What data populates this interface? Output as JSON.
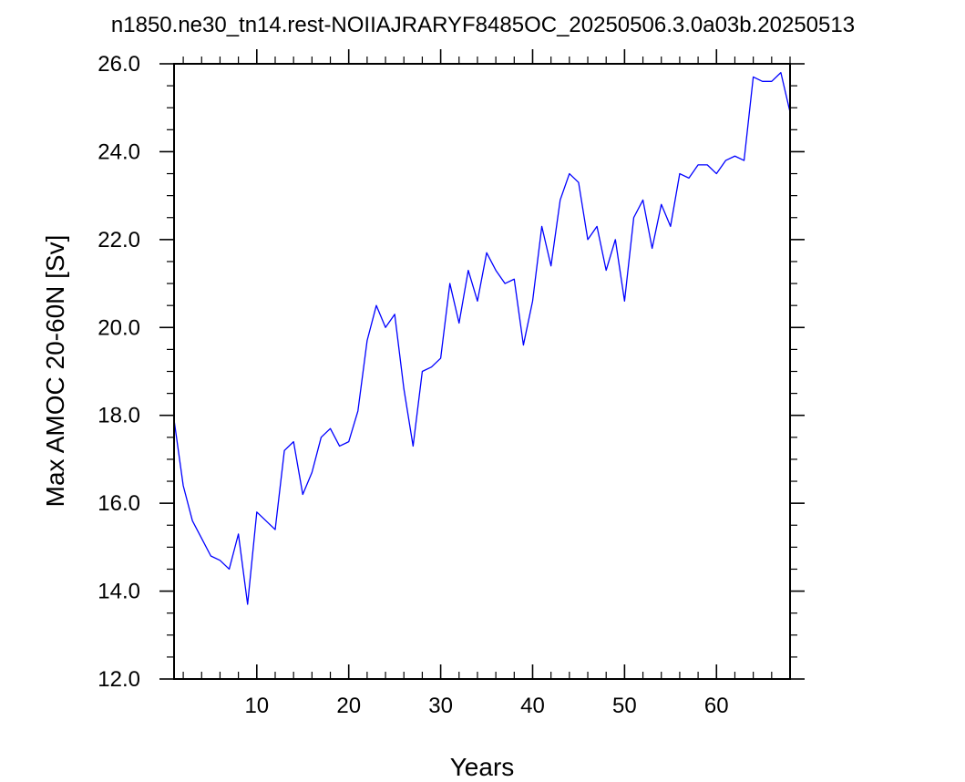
{
  "chart_data": {
    "type": "line",
    "title": "n1850.ne30_tn14.rest-NOIIAJRARYF8485OC_20250506.3.0a03b.20250513",
    "xlabel": "Years",
    "ylabel": "Max AMOC 20-60N [Sv]",
    "xlim": [
      1,
      68
    ],
    "ylim": [
      12.0,
      26.0
    ],
    "x_ticks": [
      10,
      20,
      30,
      40,
      50,
      60
    ],
    "x_tick_labels": [
      "10",
      "20",
      "30",
      "40",
      "50",
      "60"
    ],
    "y_ticks": [
      12,
      14,
      16,
      18,
      20,
      22,
      24,
      26
    ],
    "y_tick_labels": [
      "12.0",
      "14.0",
      "16.0",
      "18.0",
      "20.0",
      "22.0",
      "24.0",
      "26.0"
    ],
    "grid": false,
    "line_color": "#0000ff",
    "x": [
      1,
      2,
      3,
      4,
      5,
      6,
      7,
      8,
      9,
      10,
      11,
      12,
      13,
      14,
      15,
      16,
      17,
      18,
      19,
      20,
      21,
      22,
      23,
      24,
      25,
      26,
      27,
      28,
      29,
      30,
      31,
      32,
      33,
      34,
      35,
      36,
      37,
      38,
      39,
      40,
      41,
      42,
      43,
      44,
      45,
      46,
      47,
      48,
      49,
      50,
      51,
      52,
      53,
      54,
      55,
      56,
      57,
      58,
      59,
      60,
      61,
      62,
      63,
      64,
      65,
      66,
      67,
      68
    ],
    "y": [
      17.9,
      16.4,
      15.6,
      15.2,
      14.8,
      14.7,
      14.5,
      15.3,
      13.7,
      15.8,
      15.6,
      15.4,
      17.2,
      17.4,
      16.2,
      16.7,
      17.5,
      17.7,
      17.3,
      17.4,
      18.1,
      19.7,
      20.5,
      20.0,
      20.3,
      18.6,
      17.3,
      19.0,
      19.1,
      19.3,
      21.0,
      20.1,
      21.3,
      20.6,
      21.7,
      21.3,
      21.0,
      21.1,
      19.6,
      20.6,
      22.3,
      21.4,
      22.9,
      23.5,
      23.3,
      22.0,
      22.3,
      21.3,
      22.0,
      20.6,
      22.5,
      22.9,
      21.8,
      22.8,
      22.3,
      23.5,
      23.4,
      23.7,
      23.7,
      23.5,
      23.8,
      23.9,
      23.8,
      25.7,
      25.6,
      25.6,
      25.8,
      24.9
    ]
  }
}
